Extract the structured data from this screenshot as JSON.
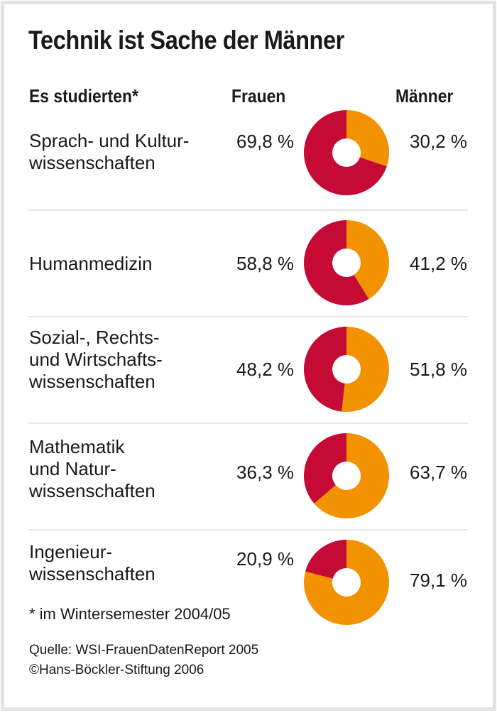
{
  "title": "Technik ist Sache der Männer",
  "headers": {
    "category": "Es studierten*",
    "women": "Frauen",
    "men": "Männer"
  },
  "colors": {
    "women": "#c40a35",
    "men": "#f29200",
    "divider": "#e6e6e6",
    "frame": "#e3e3e3"
  },
  "rows": [
    {
      "label": "Sprach- und Kultur-\nwissenschaften",
      "women_label": "69,8 %",
      "men_label": "30,2 %"
    },
    {
      "label": "Humanmedizin",
      "women_label": "58,8 %",
      "men_label": "41,2 %"
    },
    {
      "label": "Sozial-, Rechts-\nund Wirtschafts-\nwissenschaften",
      "women_label": "48,2 %",
      "men_label": "51,8 %"
    },
    {
      "label": "Mathematik\nund Natur-\nwissenschaften",
      "women_label": "36,3 %",
      "men_label": "63,7 %"
    },
    {
      "label": "Ingenieur-\nwissenschaften",
      "women_label": "20,9 %",
      "men_label": "79,1 %"
    }
  ],
  "footnote": "* im Wintersemester 2004/05",
  "source": "Quelle: WSI-FrauenDatenReport 2005",
  "copyright": "©Hans-Böckler-Stiftung 2006",
  "chart_data": {
    "type": "pie",
    "subtype": "donut",
    "title": "Technik ist Sache der Männer",
    "categories": [
      "Sprach- und Kulturwissenschaften",
      "Humanmedizin",
      "Sozial-, Rechts- und Wirtschaftswissenschaften",
      "Mathematik und Naturwissenschaften",
      "Ingenieurwissenschaften"
    ],
    "series": [
      {
        "name": "Frauen",
        "values": [
          69.8,
          58.8,
          48.2,
          36.3,
          20.9
        ]
      },
      {
        "name": "Männer",
        "values": [
          30.2,
          41.2,
          51.8,
          63.7,
          79.1
        ]
      }
    ],
    "unit": "%",
    "footnote": "* im Wintersemester 2004/05",
    "legend": "column headers top"
  }
}
